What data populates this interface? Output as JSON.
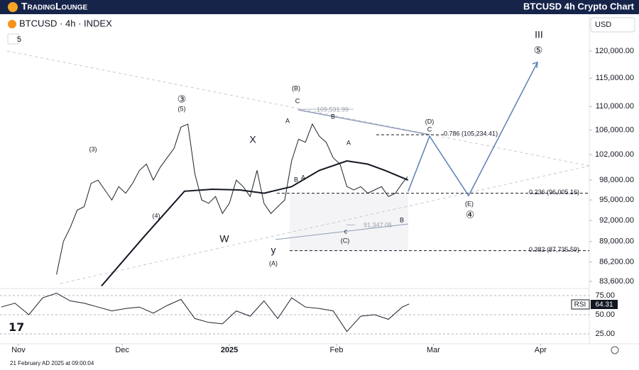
{
  "header": {
    "logo": "TradingLounge",
    "collapse": "5"
  },
  "footer": {
    "timestamp": "21 February AD 2025 at 09:00:04"
  },
  "chart_data": {
    "type": "line",
    "title": "BTCUSD 4h Crypto Chart",
    "subtitle": "BTCUSD · 4h · INDEX",
    "currency": "USD",
    "log_scale": true,
    "xlim": [
      -5.34,
      165.1
    ],
    "xticks": [
      {
        "value": 0,
        "label": "Nov"
      },
      {
        "value": 30,
        "label": "Dec"
      },
      {
        "value": 61,
        "label": "2025"
      },
      {
        "value": 92,
        "label": "Feb"
      },
      {
        "value": 120,
        "label": "Mar"
      },
      {
        "value": 151,
        "label": "Apr"
      }
    ],
    "ylim": [
      82860,
      126440
    ],
    "yticks": [
      {
        "value": 120000,
        "label": "120,000.00"
      },
      {
        "value": 115000,
        "label": "115,000.00"
      },
      {
        "value": 110000,
        "label": "110,000.00"
      },
      {
        "value": 106000,
        "label": "106,000.00"
      },
      {
        "value": 102000,
        "label": "102,000.00"
      },
      {
        "value": 98000,
        "label": "98,000.00"
      },
      {
        "value": 95000,
        "label": "95,000.00"
      },
      {
        "value": 92000,
        "label": "92,000.00"
      },
      {
        "value": 89000,
        "label": "89,000.00"
      },
      {
        "value": 86200,
        "label": "86,200.00"
      },
      {
        "value": 83600,
        "label": "83,600.00"
      }
    ],
    "series": [
      {
        "name": "BTCUSD",
        "color": "#1e222d",
        "x": [
          11,
          13,
          15,
          17,
          19,
          21,
          23,
          25,
          27,
          29,
          31,
          33,
          35,
          37,
          39,
          41,
          43,
          45,
          47,
          49,
          51,
          53,
          55,
          57,
          59,
          61,
          63,
          65,
          67,
          69,
          71,
          73,
          75,
          77,
          79,
          81,
          83,
          85,
          87,
          89,
          91,
          93,
          95,
          97,
          99,
          101,
          103,
          105,
          107,
          109,
          111,
          112.5
        ],
        "values": [
          84500,
          89000,
          91000,
          93500,
          94000,
          97500,
          98000,
          96500,
          95000,
          97000,
          96000,
          97500,
          99500,
          100500,
          98000,
          100000,
          101500,
          103000,
          106500,
          107000,
          99000,
          95000,
          94500,
          95500,
          93000,
          94500,
          98000,
          97000,
          95500,
          99500,
          94500,
          93000,
          94000,
          95000,
          101000,
          104500,
          104000,
          107000,
          105000,
          104000,
          101500,
          100500,
          97000,
          96500,
          97000,
          96000,
          96500,
          97000,
          95500,
          96000,
          97500,
          98500
        ]
      },
      {
        "name": "MA",
        "color": "#131722",
        "x": [
          24,
          36,
          48,
          56,
          64,
          71,
          79,
          87,
          95,
          101,
          106,
          112.7
        ],
        "values": [
          83000,
          89500,
          96300,
          96600,
          96500,
          96000,
          97000,
          99500,
          101000,
          100500,
          99500,
          98000
        ]
      },
      {
        "name": "Projection",
        "color": "#5b7fb5",
        "x": [
          112.7,
          118.9,
          130.2,
          150.1
        ],
        "values": [
          96270,
          105000,
          95630,
          117900
        ]
      }
    ],
    "fib_levels": [
      {
        "label": "0.786 (105,234.41)",
        "value": 105234.41
      },
      {
        "label": "0.236 (96,005.16)",
        "value": 96005.16
      },
      {
        "label": "0.382 (87,735.59)",
        "value": 87735.59
      }
    ],
    "price_notes": [
      {
        "value": 109531.99,
        "label": "109,531.99"
      },
      {
        "value": 91347.05,
        "label": "91,347.05"
      }
    ],
    "wave_labels": [
      {
        "text": "③",
        "color": "#3d5a99"
      },
      {
        "text": "(5)",
        "color": "#f57c00"
      },
      {
        "text": "(3)",
        "color": "#f57c00"
      },
      {
        "text": "(4)",
        "color": "#f57c00"
      },
      {
        "text": "X",
        "color": "#787b86"
      },
      {
        "text": "W",
        "color": "#787b86"
      },
      {
        "text": "y",
        "color": "#787b86"
      },
      {
        "text": "(A)",
        "color": "#f57c00"
      },
      {
        "text": "(B)",
        "color": "#f57c00"
      },
      {
        "text": "C",
        "color": "#787b86"
      },
      {
        "text": "A",
        "color": "#787b86"
      },
      {
        "text": "B",
        "color": "#787b86"
      },
      {
        "text": "A",
        "color": "#787b86"
      },
      {
        "text": "B",
        "color": "#787b86"
      },
      {
        "text": "A",
        "color": "#787b86"
      },
      {
        "text": "c",
        "color": "#787b86"
      },
      {
        "text": "(C)",
        "color": "#f57c00"
      },
      {
        "text": "B",
        "color": "#787b86"
      },
      {
        "text": "(D)",
        "color": "#f57c00"
      },
      {
        "text": "C",
        "color": "#787b86"
      },
      {
        "text": "(E)",
        "color": "#f57c00"
      },
      {
        "text": "④",
        "color": "#3d5a99"
      },
      {
        "text": "III",
        "color": "#8e9bb8"
      },
      {
        "text": "⑤",
        "color": "#3d5a99"
      }
    ],
    "rsi": {
      "name": "RSI",
      "current": 64.31,
      "color": "#1e222d",
      "ylim": [
        14.8,
        83.3
      ],
      "yticks": [
        {
          "value": 75,
          "label": "75.00"
        },
        {
          "value": 50,
          "label": "50.00"
        },
        {
          "value": 25,
          "label": "25.00"
        }
      ],
      "x": [
        -5,
        -1,
        3,
        7,
        11,
        15,
        19,
        23,
        27,
        31,
        35,
        39,
        43,
        47,
        51,
        55,
        59,
        63,
        67,
        71,
        75,
        79,
        83,
        87,
        91,
        95,
        99,
        103,
        107,
        111,
        113
      ],
      "values": [
        60,
        65,
        50,
        72,
        78,
        68,
        65,
        60,
        55,
        58,
        60,
        52,
        62,
        70,
        45,
        40,
        38,
        55,
        48,
        68,
        45,
        72,
        60,
        58,
        55,
        28,
        48,
        50,
        44,
        60,
        64
      ]
    }
  }
}
